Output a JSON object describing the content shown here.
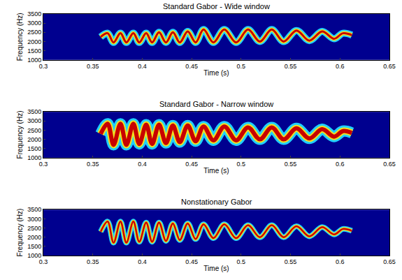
{
  "chart_data": [
    {
      "type": "line",
      "title": "Standard Gabor - Wide window",
      "x_label": "Time (s)",
      "y_label": "Frequency (Hz)",
      "xlim": [
        0.3,
        0.65
      ],
      "xticks": [
        0.3,
        0.35,
        0.4,
        0.45,
        0.5,
        0.55,
        0.6,
        0.65
      ],
      "ylim": [
        1000,
        3500
      ],
      "yticks": [
        1000,
        1500,
        2000,
        2500,
        3000,
        3500
      ],
      "grid": false,
      "x": [
        0.358,
        0.365,
        0.371,
        0.378,
        0.384,
        0.391,
        0.397,
        0.404,
        0.41,
        0.417,
        0.424,
        0.431,
        0.438,
        0.446,
        0.454,
        0.462,
        0.472,
        0.483,
        0.495,
        0.507,
        0.519,
        0.531,
        0.543,
        0.556,
        0.569,
        0.582,
        0.594,
        0.603,
        0.612
      ],
      "series": [
        {
          "color": "#c80000",
          "values": [
            2250,
            2450,
            1950,
            2450,
            1950,
            2450,
            1950,
            2450,
            1950,
            2500,
            1950,
            2500,
            1950,
            2550,
            1950,
            2650,
            1950,
            2650,
            1950,
            2650,
            2000,
            2650,
            2000,
            2600,
            2050,
            2550,
            2150,
            2450,
            2350
          ]
        }
      ]
    },
    {
      "type": "line",
      "title": "Standard Gabor - Narrow window",
      "x_label": "Time (s)",
      "y_label": "Frequency (Hz)",
      "xlim": [
        0.3,
        0.65
      ],
      "xticks": [
        0.3,
        0.35,
        0.4,
        0.45,
        0.5,
        0.55,
        0.6,
        0.65
      ],
      "ylim": [
        1000,
        3500
      ],
      "yticks": [
        1000,
        1500,
        2000,
        2500,
        3000,
        3500
      ],
      "grid": false,
      "x": [
        0.358,
        0.365,
        0.371,
        0.378,
        0.384,
        0.391,
        0.397,
        0.404,
        0.41,
        0.417,
        0.424,
        0.431,
        0.438,
        0.446,
        0.454,
        0.462,
        0.472,
        0.483,
        0.495,
        0.507,
        0.519,
        0.531,
        0.543,
        0.556,
        0.569,
        0.582,
        0.594,
        0.603,
        0.612
      ],
      "series": [
        {
          "color": "#c80000",
          "values": [
            2300,
            2850,
            1700,
            2850,
            1700,
            2850,
            1750,
            2800,
            1750,
            2800,
            1800,
            2750,
            1850,
            2750,
            1900,
            2700,
            1950,
            2700,
            1950,
            2650,
            2000,
            2650,
            2000,
            2600,
            2050,
            2550,
            2150,
            2450,
            2350
          ]
        }
      ]
    },
    {
      "type": "line",
      "title": "Nonstationary Gabor",
      "x_label": "Time (s)",
      "y_label": "Frequency (Hz)",
      "xlim": [
        0.3,
        0.65
      ],
      "xticks": [
        0.3,
        0.35,
        0.4,
        0.45,
        0.5,
        0.55,
        0.6,
        0.65
      ],
      "ylim": [
        1000,
        3500
      ],
      "yticks": [
        1000,
        1500,
        2000,
        2500,
        3000,
        3500
      ],
      "grid": false,
      "x": [
        0.358,
        0.365,
        0.371,
        0.378,
        0.384,
        0.391,
        0.397,
        0.404,
        0.41,
        0.417,
        0.424,
        0.431,
        0.438,
        0.446,
        0.454,
        0.462,
        0.472,
        0.483,
        0.495,
        0.507,
        0.519,
        0.531,
        0.543,
        0.556,
        0.569,
        0.582,
        0.594,
        0.603,
        0.612
      ],
      "series": [
        {
          "color": "#c80000",
          "values": [
            2300,
            2850,
            1700,
            2850,
            1700,
            2850,
            1750,
            2800,
            1750,
            2800,
            1800,
            2750,
            1850,
            2750,
            1900,
            2700,
            1950,
            2700,
            1950,
            2650,
            2000,
            2650,
            2000,
            2600,
            2050,
            2550,
            2150,
            2450,
            2350
          ]
        }
      ]
    }
  ]
}
